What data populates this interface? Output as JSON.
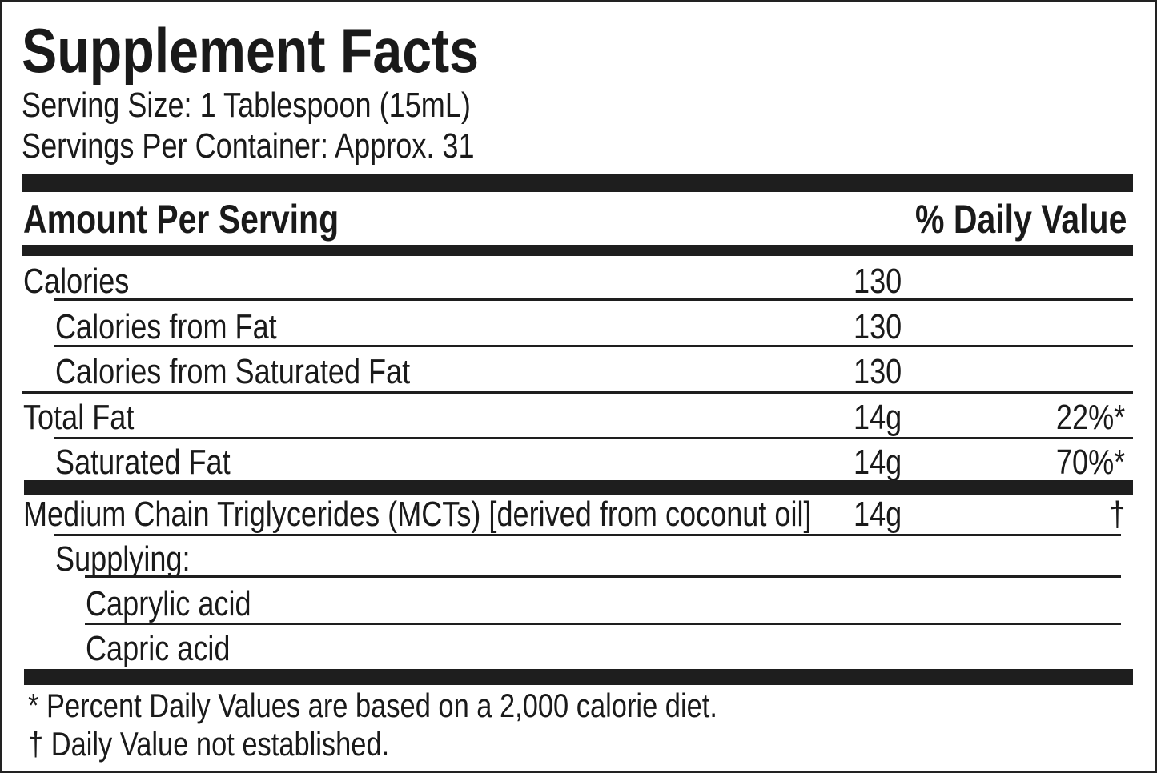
{
  "title": "Supplement Facts",
  "serving_size": "Serving Size: 1 Tablespoon (15mL)",
  "servings_per_container": "Servings Per Container: Approx. 31",
  "header": {
    "amount": "Amount Per Serving",
    "daily_value": "% Daily Value"
  },
  "rows": [
    {
      "name": "Calories",
      "amount": "130",
      "dv": ""
    },
    {
      "name": "Calories from Fat",
      "amount": "130",
      "dv": ""
    },
    {
      "name": "Calories from Saturated Fat",
      "amount": "130",
      "dv": ""
    },
    {
      "name": "Total Fat",
      "amount": "14g",
      "dv": "22%*"
    },
    {
      "name": "Saturated Fat",
      "amount": "14g",
      "dv": "70%*"
    },
    {
      "name": "Medium Chain Triglycerides (MCTs) [derived from coconut oil]",
      "amount": "14g",
      "dv": "†"
    },
    {
      "name": "Supplying:",
      "amount": "",
      "dv": ""
    },
    {
      "name": "Caprylic acid",
      "amount": "",
      "dv": ""
    },
    {
      "name": "Capric acid",
      "amount": "",
      "dv": ""
    }
  ],
  "footnotes": [
    "* Percent Daily Values are based on a 2,000 calorie diet.",
    "† Daily Value not established."
  ]
}
